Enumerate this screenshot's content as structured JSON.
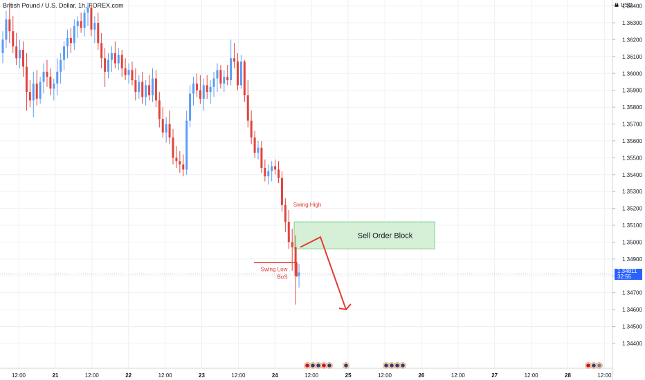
{
  "header": {
    "title": "British Pound / U.S. Dollar, 1h, FOREX.com",
    "currency": "USD"
  },
  "current_price": {
    "price": "1.34811",
    "countdown": "32:55"
  },
  "colors": {
    "up": "#5b9cf6",
    "down": "#e0443d",
    "annotation": "#e53935",
    "order_block_fill": "#d6efd7",
    "order_block_stroke": "#7fcf8a",
    "grid": "#eef0f3",
    "axis_text": "#131722",
    "current_line": "#b0b6c3",
    "price_box": "#2962ff"
  },
  "chart_data": {
    "type": "candlestick",
    "title": "British Pound / U.S. Dollar, 1h, FOREX.com",
    "y_axis": {
      "position": "right",
      "ticks": [
        1.364,
        1.363,
        1.362,
        1.361,
        1.36,
        1.359,
        1.358,
        1.357,
        1.356,
        1.355,
        1.354,
        1.353,
        1.352,
        1.351,
        1.35,
        1.349,
        1.348,
        1.347,
        1.346,
        1.345,
        1.344
      ],
      "tick_labels": [
        "1.36400",
        "1.36300",
        "1.36200",
        "1.36100",
        "1.36000",
        "1.35900",
        "1.35800",
        "1.35700",
        "1.35600",
        "1.35500",
        "1.35400",
        "1.35300",
        "1.35200",
        "1.35100",
        "1.35000",
        "1.34900",
        "1.34800",
        "1.34700",
        "1.34600",
        "1.34500",
        "1.34400"
      ],
      "range": [
        1.3435,
        1.3648
      ]
    },
    "x_axis": {
      "tick_labels": [
        "12:00",
        "21",
        "12:00",
        "22",
        "12:00",
        "23",
        "12:00",
        "24",
        "12:00",
        "25",
        "12:00",
        "26",
        "12:00",
        "27",
        "12:00",
        "28",
        "12:00"
      ],
      "bold_labels": [
        "21",
        "22",
        "23",
        "24",
        "25",
        "26",
        "27",
        "28"
      ]
    },
    "grid": true,
    "candles": [
      [
        1.3612,
        1.3625,
        1.3606,
        1.362
      ],
      [
        1.362,
        1.3637,
        1.3615,
        1.3632
      ],
      [
        1.3632,
        1.3642,
        1.3618,
        1.3625
      ],
      [
        1.3625,
        1.3634,
        1.3612,
        1.3616
      ],
      [
        1.3616,
        1.3624,
        1.3605,
        1.3609
      ],
      [
        1.3609,
        1.362,
        1.3603,
        1.3614
      ],
      [
        1.3614,
        1.3619,
        1.3598,
        1.3604
      ],
      [
        1.3604,
        1.3612,
        1.3578,
        1.3589
      ],
      [
        1.3589,
        1.3596,
        1.358,
        1.3584
      ],
      [
        1.3584,
        1.3601,
        1.3574,
        1.3594
      ],
      [
        1.3594,
        1.3602,
        1.3581,
        1.3585
      ],
      [
        1.3585,
        1.3598,
        1.3582,
        1.3595
      ],
      [
        1.3595,
        1.3606,
        1.3588,
        1.3601
      ],
      [
        1.3601,
        1.3608,
        1.3592,
        1.3598
      ],
      [
        1.3598,
        1.3603,
        1.3587,
        1.3591
      ],
      [
        1.3591,
        1.3597,
        1.3584,
        1.3594
      ],
      [
        1.3594,
        1.3609,
        1.3587,
        1.3601
      ],
      [
        1.3601,
        1.3612,
        1.3594,
        1.3608
      ],
      [
        1.3608,
        1.3619,
        1.3602,
        1.3616
      ],
      [
        1.3616,
        1.3626,
        1.3609,
        1.3621
      ],
      [
        1.3621,
        1.3627,
        1.3612,
        1.3618
      ],
      [
        1.3618,
        1.3632,
        1.3614,
        1.3628
      ],
      [
        1.3628,
        1.3634,
        1.3621,
        1.3631
      ],
      [
        1.3631,
        1.3636,
        1.3624,
        1.3627
      ],
      [
        1.3627,
        1.3638,
        1.3622,
        1.3636
      ],
      [
        1.3636,
        1.3642,
        1.3628,
        1.3639
      ],
      [
        1.3639,
        1.3641,
        1.3622,
        1.3626
      ],
      [
        1.3626,
        1.3634,
        1.3618,
        1.363
      ],
      [
        1.363,
        1.3636,
        1.3614,
        1.3618
      ],
      [
        1.3618,
        1.3624,
        1.3603,
        1.3609
      ],
      [
        1.3609,
        1.3615,
        1.3592,
        1.3601
      ],
      [
        1.3601,
        1.3612,
        1.3597,
        1.3608
      ],
      [
        1.3608,
        1.3616,
        1.3601,
        1.3612
      ],
      [
        1.3612,
        1.3619,
        1.3603,
        1.3606
      ],
      [
        1.3606,
        1.3615,
        1.3602,
        1.3611
      ],
      [
        1.3611,
        1.3614,
        1.3598,
        1.3603
      ],
      [
        1.3603,
        1.3609,
        1.3596,
        1.3599
      ],
      [
        1.3599,
        1.3606,
        1.3594,
        1.3602
      ],
      [
        1.3602,
        1.3607,
        1.3593,
        1.3596
      ],
      [
        1.3596,
        1.3603,
        1.3584,
        1.3589
      ],
      [
        1.3589,
        1.3599,
        1.3585,
        1.3595
      ],
      [
        1.3595,
        1.3601,
        1.3582,
        1.3586
      ],
      [
        1.3586,
        1.3596,
        1.3581,
        1.3593
      ],
      [
        1.3593,
        1.3599,
        1.3584,
        1.3587
      ],
      [
        1.3587,
        1.3603,
        1.3583,
        1.3597
      ],
      [
        1.3597,
        1.3602,
        1.358,
        1.3584
      ],
      [
        1.3584,
        1.3589,
        1.3568,
        1.3573
      ],
      [
        1.3573,
        1.358,
        1.3562,
        1.3565
      ],
      [
        1.3565,
        1.3574,
        1.3559,
        1.357
      ],
      [
        1.357,
        1.3578,
        1.3558,
        1.3562
      ],
      [
        1.3562,
        1.3567,
        1.3546,
        1.355
      ],
      [
        1.355,
        1.3557,
        1.3544,
        1.3548
      ],
      [
        1.3548,
        1.3554,
        1.3541,
        1.3546
      ],
      [
        1.3546,
        1.3552,
        1.3539,
        1.3543
      ],
      [
        1.3543,
        1.3578,
        1.354,
        1.3572
      ],
      [
        1.3572,
        1.3593,
        1.3568,
        1.3588
      ],
      [
        1.3588,
        1.3598,
        1.3581,
        1.3594
      ],
      [
        1.3594,
        1.36,
        1.3586,
        1.359
      ],
      [
        1.359,
        1.3599,
        1.3582,
        1.3585
      ],
      [
        1.3585,
        1.3597,
        1.3578,
        1.3593
      ],
      [
        1.3593,
        1.3599,
        1.3585,
        1.3589
      ],
      [
        1.3589,
        1.3596,
        1.3582,
        1.3592
      ],
      [
        1.3592,
        1.3601,
        1.3586,
        1.3597
      ],
      [
        1.3597,
        1.3606,
        1.3589,
        1.3602
      ],
      [
        1.3602,
        1.3605,
        1.3591,
        1.3594
      ],
      [
        1.3594,
        1.3602,
        1.3589,
        1.3598
      ],
      [
        1.3598,
        1.3605,
        1.3593,
        1.3596
      ],
      [
        1.3596,
        1.362,
        1.3593,
        1.3609
      ],
      [
        1.3609,
        1.3618,
        1.3603,
        1.3607
      ],
      [
        1.3607,
        1.3612,
        1.359,
        1.3593
      ],
      [
        1.3593,
        1.3611,
        1.3591,
        1.3607
      ],
      [
        1.3607,
        1.3608,
        1.3583,
        1.3587
      ],
      [
        1.3587,
        1.3596,
        1.3568,
        1.3572
      ],
      [
        1.3572,
        1.3578,
        1.3558,
        1.3562
      ],
      [
        1.3562,
        1.3566,
        1.355,
        1.3553
      ],
      [
        1.3553,
        1.356,
        1.3549,
        1.3556
      ],
      [
        1.3556,
        1.356,
        1.3541,
        1.3544
      ],
      [
        1.3544,
        1.3549,
        1.3536,
        1.3539
      ],
      [
        1.3539,
        1.3546,
        1.3534,
        1.3542
      ],
      [
        1.3542,
        1.3548,
        1.3536,
        1.3545
      ],
      [
        1.3545,
        1.3549,
        1.354,
        1.3543
      ],
      [
        1.3543,
        1.3548,
        1.3535,
        1.3538
      ],
      [
        1.3538,
        1.3542,
        1.3518,
        1.3522
      ],
      [
        1.3522,
        1.3526,
        1.3506,
        1.3512
      ],
      [
        1.3512,
        1.3519,
        1.3496,
        1.35
      ],
      [
        1.35,
        1.3508,
        1.3483,
        1.3497
      ],
      [
        1.3497,
        1.3504,
        1.3463,
        1.348
      ],
      [
        1.348,
        1.3487,
        1.3473,
        1.3482
      ]
    ]
  },
  "annotations": {
    "swing_high": "Swing High",
    "swing_low": "Swing Low",
    "bos": "BoS",
    "order_block": "Sell Order Block",
    "order_block_range": [
      1.3496,
      1.3512
    ],
    "bos_level": 1.3488,
    "projection": [
      [
        1.3497,
        0
      ],
      [
        1.3503,
        1
      ],
      [
        1.346,
        2
      ]
    ]
  },
  "events": {
    "group_a": [
      "flag-gb",
      "flag-us",
      "flag-us",
      "flag-gb",
      "flag-us"
    ],
    "group_b": [
      "flag-us"
    ],
    "group_c": [
      "flag-us",
      "flag-us",
      "flag-us",
      "flag-us"
    ],
    "group_d": [
      "flag-gb",
      "flag-us",
      "flag-more"
    ]
  }
}
